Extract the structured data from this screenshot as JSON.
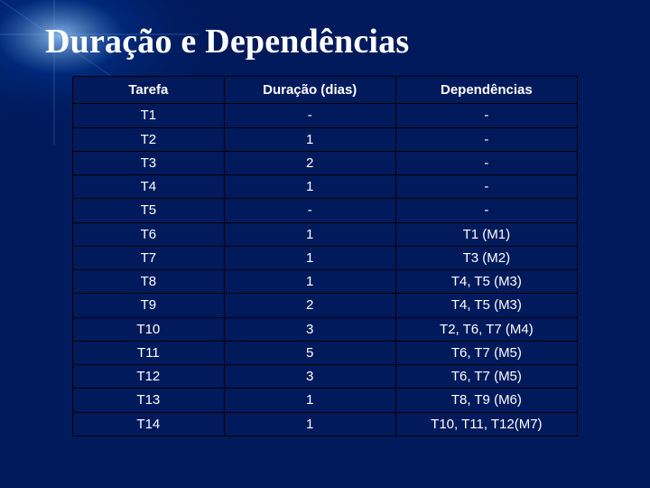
{
  "slide": {
    "title": "Duração e Dependências",
    "background_color": "#001a5c",
    "title_color": "#ffffff",
    "flare": {
      "center_color": "#9bd0ff",
      "mid_color": "#00338f",
      "outer_color": "#001a5c"
    }
  },
  "table": {
    "type": "table",
    "border_color": "#000000",
    "header_bg": "#001a5c",
    "header_text_color": "#ffffff",
    "cell_bg": "#001a5c",
    "cell_text_color": "#ffffff",
    "header_fontsize": 15,
    "cell_fontsize": 15,
    "columns": [
      "Tarefa",
      "Duração (dias)",
      "Dependências"
    ],
    "column_widths_pct": [
      30,
      34,
      36
    ],
    "rows": [
      [
        "T1",
        "-",
        "-"
      ],
      [
        "T2",
        "1",
        "-"
      ],
      [
        "T3",
        "2",
        "-"
      ],
      [
        "T4",
        "1",
        "-"
      ],
      [
        "T5",
        "-",
        "-"
      ],
      [
        "T6",
        "1",
        "T1 (M1)"
      ],
      [
        "T7",
        "1",
        "T3 (M2)"
      ],
      [
        "T8",
        "1",
        "T4, T5 (M3)"
      ],
      [
        "T9",
        "2",
        "T4, T5 (M3)"
      ],
      [
        "T10",
        "3",
        "T2, T6, T7 (M4)"
      ],
      [
        "T11",
        "5",
        "T6, T7 (M5)"
      ],
      [
        "T12",
        "3",
        "T6, T7 (M5)"
      ],
      [
        "T13",
        "1",
        "T8, T9 (M6)"
      ],
      [
        "T14",
        "1",
        "T10, T11, T12(M7)"
      ]
    ]
  }
}
